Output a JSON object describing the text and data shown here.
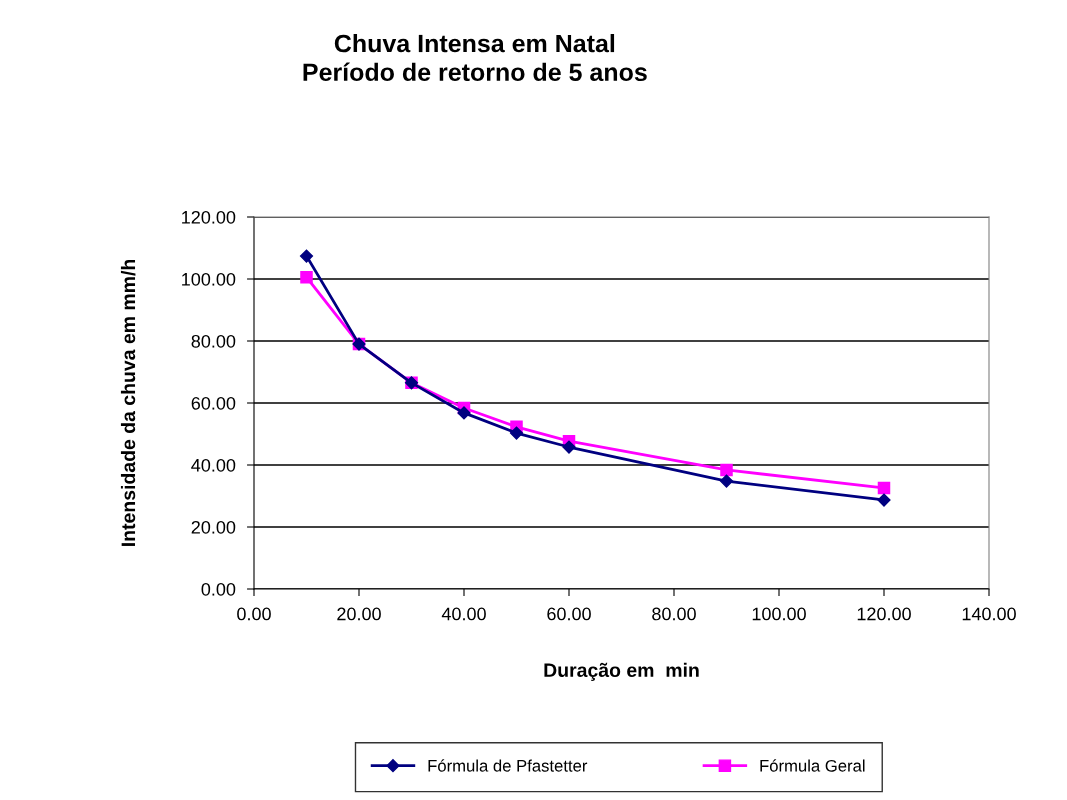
{
  "chart_data": {
    "type": "line",
    "title": "Chuva Intensa em Natal\nPeríodo de retorno de 5 anos",
    "xlabel": "Duração em  min",
    "ylabel": "Intensidade da chuva em mm/h",
    "x": [
      10,
      20,
      30,
      40,
      50,
      60,
      90,
      120
    ],
    "series": [
      {
        "name": "Fórmula de Pfastetter",
        "color": "#000080",
        "marker": "diamond",
        "values": [
          107.4,
          79.0,
          66.5,
          56.8,
          50.3,
          45.8,
          34.8,
          28.7
        ]
      },
      {
        "name": "Fórmula Geral",
        "color": "#ff00ff",
        "marker": "square",
        "values": [
          100.6,
          79.0,
          66.5,
          58.4,
          52.3,
          47.7,
          38.4,
          32.6
        ]
      }
    ],
    "xlim": [
      0,
      140
    ],
    "xticks": [
      {
        "value": 0,
        "label": "0.00"
      },
      {
        "value": 20,
        "label": "20.00"
      },
      {
        "value": 40,
        "label": "40.00"
      },
      {
        "value": 60,
        "label": "60.00"
      },
      {
        "value": 80,
        "label": "80.00"
      },
      {
        "value": 100,
        "label": "100.00"
      },
      {
        "value": 120,
        "label": "120.00"
      },
      {
        "value": 140,
        "label": "140.00"
      }
    ],
    "ylim": [
      0,
      120
    ],
    "yticks": [
      {
        "value": 0,
        "label": "0.00"
      },
      {
        "value": 20,
        "label": "20.00"
      },
      {
        "value": 40,
        "label": "40.00"
      },
      {
        "value": 60,
        "label": "60.00"
      },
      {
        "value": 80,
        "label": "80.00"
      },
      {
        "value": 100,
        "label": "100.00"
      },
      {
        "value": 120,
        "label": "120.00"
      }
    ],
    "grid": "y",
    "legend": "bottom",
    "line_style": "solid"
  }
}
